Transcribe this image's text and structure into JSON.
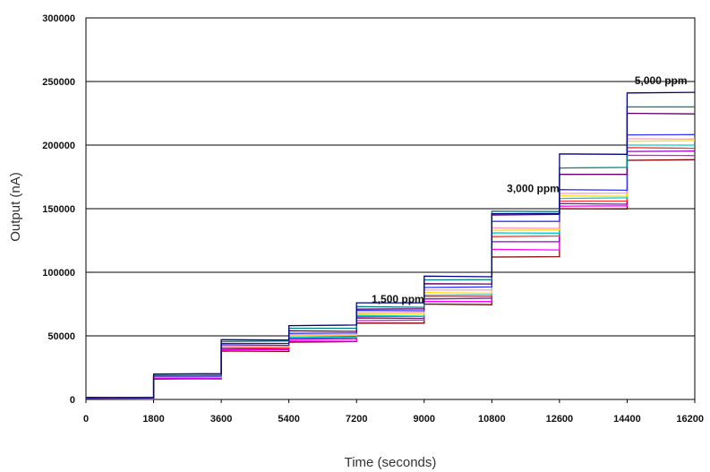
{
  "chart_data": {
    "type": "line",
    "title": "",
    "xlabel": "Time (seconds)",
    "ylabel": "Output (nA)",
    "xlim": [
      0,
      16200
    ],
    "ylim": [
      0,
      300000
    ],
    "x_ticks": [
      0,
      1800,
      3600,
      5400,
      7200,
      9000,
      10800,
      12600,
      14400,
      16200
    ],
    "x_tick_labels": [
      "0",
      "1800",
      "3600",
      "5400",
      "7200",
      "9000",
      "10800",
      "12600",
      "14400",
      "16200"
    ],
    "y_ticks": [
      0,
      50000,
      100000,
      150000,
      200000,
      250000,
      300000
    ],
    "y_tick_labels": [
      "0",
      "50000",
      "100000",
      "150000",
      "200000",
      "250000",
      "300000"
    ],
    "grid": "horizontal",
    "legend": "none",
    "step_edges": [
      0,
      1800,
      3600,
      5400,
      7200,
      9000,
      10800,
      12600,
      14400,
      16200
    ],
    "annotations": [
      {
        "text": "1,500 ppm",
        "x": 8300,
        "y": 76000
      },
      {
        "text": "3,000 ppm",
        "x": 11900,
        "y": 163000
      },
      {
        "text": "5,000 ppm",
        "x": 15300,
        "y": 248000
      }
    ],
    "series": [
      {
        "color": "#800000",
        "levels": [
          800,
          16000,
          38000,
          45000,
          60000,
          75000,
          112000,
          150000,
          188000
        ]
      },
      {
        "color": "#ff00ff",
        "levels": [
          900,
          16500,
          39000,
          46000,
          62000,
          77000,
          118000,
          152000,
          192000
        ]
      },
      {
        "color": "#9900cc",
        "levels": [
          1000,
          17000,
          40000,
          47500,
          64000,
          79000,
          124000,
          154000,
          195000
        ]
      },
      {
        "color": "#ff3333",
        "levels": [
          1000,
          17200,
          40500,
          48500,
          65000,
          81000,
          128000,
          156000,
          198000
        ]
      },
      {
        "color": "#00cccc",
        "levels": [
          1100,
          17500,
          41000,
          49000,
          66000,
          82000,
          131000,
          158000,
          200000
        ]
      },
      {
        "color": "#ffdd00",
        "levels": [
          1200,
          17800,
          41500,
          50000,
          67000,
          84000,
          133000,
          160000,
          203000
        ]
      },
      {
        "color": "#ff99cc",
        "levels": [
          1200,
          18000,
          42000,
          51000,
          68000,
          86000,
          135000,
          162000,
          205000
        ]
      },
      {
        "color": "#3333ff",
        "levels": [
          1300,
          18300,
          43000,
          52000,
          70000,
          88000,
          140000,
          165000,
          208000
        ]
      },
      {
        "color": "#660066",
        "levels": [
          1400,
          18600,
          44000,
          54000,
          71000,
          91000,
          145000,
          177000,
          225000
        ]
      },
      {
        "color": "#008080",
        "levels": [
          1500,
          19000,
          45500,
          56000,
          73000,
          94000,
          148000,
          182000,
          230000
        ]
      },
      {
        "color": "#000080",
        "levels": [
          1600,
          20000,
          47000,
          58000,
          76000,
          97000,
          146000,
          193000,
          241000
        ]
      }
    ]
  }
}
